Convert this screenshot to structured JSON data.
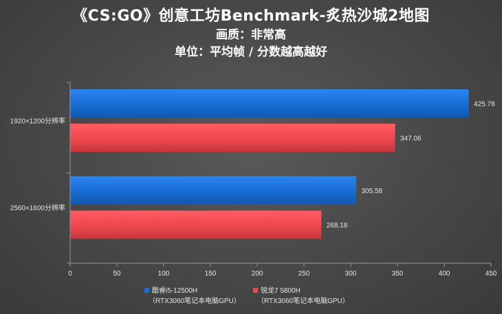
{
  "title": "《CS:GO》创意工坊Benchmark-炙热沙城2地图",
  "subtitle1": "画质：非常高",
  "subtitle2": "单位：平均帧 / 分数越高越好",
  "colors": {
    "series1": "#1a6fd6",
    "series2": "#f04a4f",
    "axis_text": "#e6e6e6",
    "gridline": "#8a8a8a"
  },
  "chart_data": {
    "type": "bar",
    "orientation": "horizontal",
    "categories": [
      "1920×1200分辨率",
      "2560×1600分辨率"
    ],
    "series": [
      {
        "name": "酷睿i5-12500H",
        "name_line2": "（RTX3060笔记本电脑GPU）",
        "values": [
          425.78,
          305.58
        ]
      },
      {
        "name": "锐龙7 5800H",
        "name_line2": "（RTX3060笔记本电脑GPU）",
        "values": [
          347.06,
          268.18
        ]
      }
    ],
    "xlim": [
      0,
      450
    ],
    "xticks": [
      0,
      50,
      100,
      150,
      200,
      250,
      300,
      350,
      400,
      450
    ],
    "grid": false,
    "legend_position": "bottom",
    "value_labels": [
      "425.78",
      "347.06",
      "305.58",
      "268.18"
    ]
  }
}
